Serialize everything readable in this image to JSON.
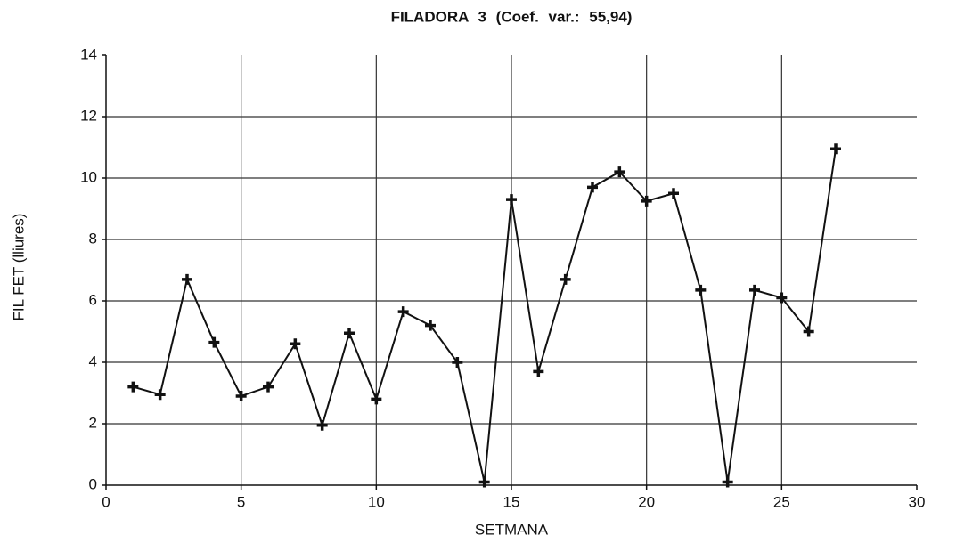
{
  "chart_data": {
    "type": "line",
    "title": "FILADORA 3 (Coef. var.: 55,94)",
    "xlabel": "SETMANA",
    "ylabel": "FIL FET (lliures)",
    "x": [
      1,
      2,
      3,
      4,
      5,
      6,
      7,
      8,
      9,
      10,
      11,
      12,
      13,
      14,
      15,
      16,
      17,
      18,
      19,
      20,
      21,
      22,
      23,
      24,
      25,
      26,
      27
    ],
    "values": [
      3.2,
      2.95,
      6.7,
      4.65,
      2.9,
      3.2,
      4.6,
      1.95,
      4.95,
      2.8,
      5.65,
      5.2,
      4.0,
      0.1,
      9.3,
      3.7,
      6.7,
      9.7,
      10.2,
      9.25,
      9.5,
      6.35,
      0.1,
      6.35,
      6.1,
      5.0,
      10.95
    ],
    "color": "#111111",
    "xlim": [
      0,
      30
    ],
    "xticks": [
      0,
      5,
      10,
      15,
      20,
      25,
      30
    ],
    "ylim": [
      0,
      14
    ],
    "yticks": [
      0,
      2,
      4,
      6,
      8,
      10,
      12,
      14
    ],
    "grid": true
  }
}
